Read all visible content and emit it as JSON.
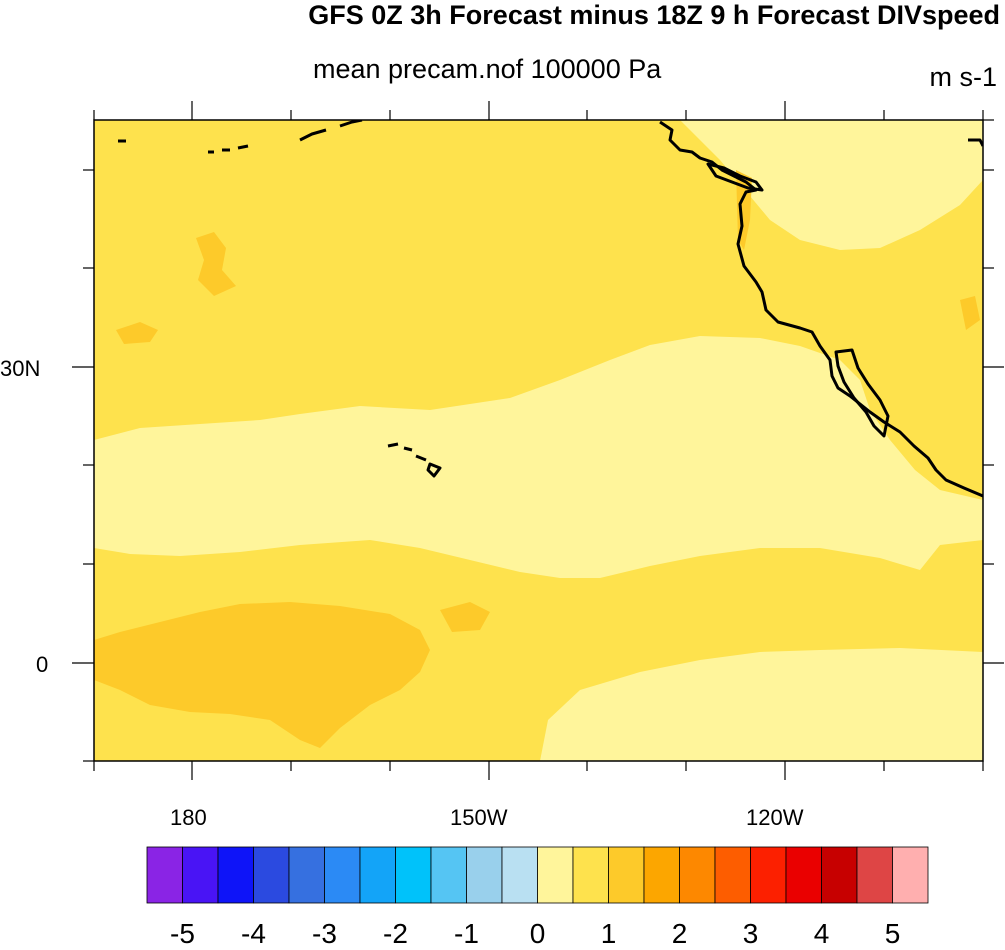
{
  "title": "GFS 0Z 3h Forecast minus 18Z 9 h Forecast DIVspeed",
  "subtitle": "mean precam.nof 100000 Pa",
  "units": "m s-1",
  "map": {
    "region": "North Pacific",
    "lon_range": [
      "170E",
      "110W"
    ],
    "lat_range": [
      "10S",
      "45N"
    ],
    "lon_ticks": [
      {
        "label": "180"
      },
      {
        "label": "150W"
      },
      {
        "label": "120W"
      }
    ],
    "lat_ticks": [
      {
        "label": "30N"
      },
      {
        "label": "0"
      }
    ],
    "fill_colors": {
      "level_0_1": "#fff59b",
      "level_1_2": "#fee24d",
      "level_2_3": "#fdca2a"
    }
  },
  "colorbar": {
    "colors": [
      "#8a24e5",
      "#4914f5",
      "#0e14f8",
      "#2b4ae0",
      "#3670e0",
      "#2b8af5",
      "#13a4f8",
      "#00c2fa",
      "#55c5f3",
      "#99d0ec",
      "#b9e0f2",
      "#fff59b",
      "#fee24d",
      "#fdca2a",
      "#fca600",
      "#fd8800",
      "#fd5d00",
      "#fc2000",
      "#ea0000",
      "#c70000",
      "#de4545",
      "#ffafaf"
    ],
    "labels": [
      "-5",
      "-4",
      "-3",
      "-2",
      "-1",
      "0",
      "1",
      "2",
      "3",
      "4",
      "5"
    ]
  }
}
